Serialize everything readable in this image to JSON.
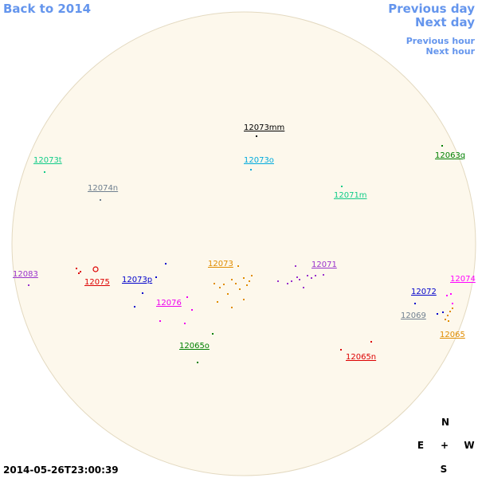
{
  "navigation": {
    "back": "Back to 2014",
    "previous_day": "Previous day",
    "next_day": "Next day",
    "previous_hour": "Previous hour",
    "next_hour": "Next hour"
  },
  "groups": [
    {
      "label": "12073mm",
      "color": "#000000"
    },
    {
      "label": "12073t",
      "color": "#11cc88"
    },
    {
      "label": "12073o",
      "color": "#00aadd"
    },
    {
      "label": "12063q",
      "color": "#008000"
    },
    {
      "label": "12074n",
      "color": "#708090"
    },
    {
      "label": "12071m",
      "color": "#11cc88"
    },
    {
      "label": "12073",
      "color": "#e08c00"
    },
    {
      "label": "12071",
      "color": "#9932cc"
    },
    {
      "label": "12083",
      "color": "#9932cc"
    },
    {
      "label": "12075",
      "color": "#dd0000"
    },
    {
      "label": "12073p",
      "color": "#0000cc"
    },
    {
      "label": "12074",
      "color": "#ff00ff"
    },
    {
      "label": "12072",
      "color": "#0000cc"
    },
    {
      "label": "12076",
      "color": "#ee00ee"
    },
    {
      "label": "12069",
      "color": "#708090"
    },
    {
      "label": "12065",
      "color": "#e08c00"
    },
    {
      "label": "12065o",
      "color": "#008000"
    },
    {
      "label": "12065n",
      "color": "#dd0000"
    }
  ],
  "compass": {
    "north": "N",
    "east": "E",
    "center": "+",
    "west": "W",
    "south": "S"
  },
  "timestamp": "2014-05-26T23:00:39"
}
